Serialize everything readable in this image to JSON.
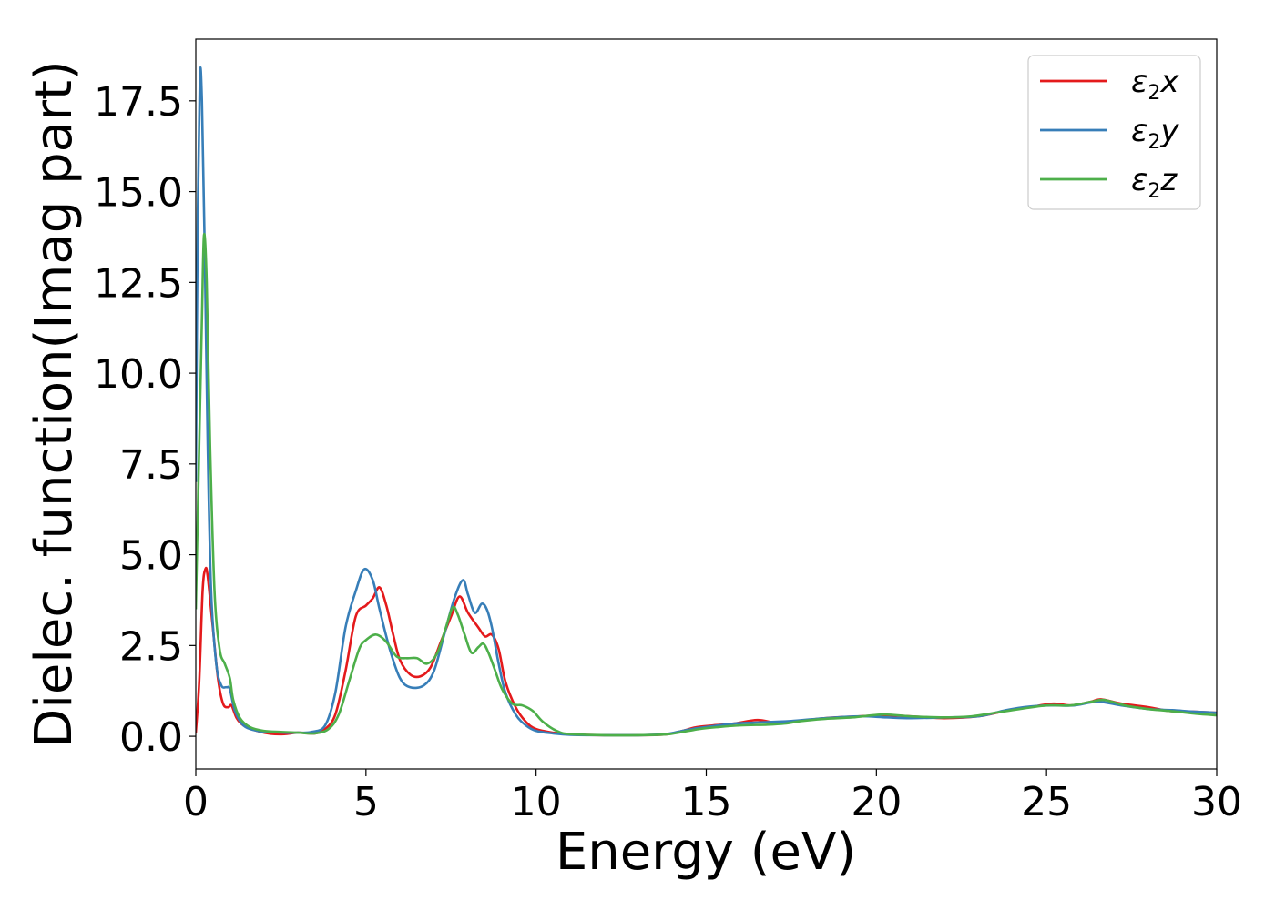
{
  "chart_data": {
    "type": "line",
    "xlabel": "Energy (eV)",
    "ylabel": "Dielec. function(Imag part)",
    "xlim": [
      0,
      30
    ],
    "ylim": [
      -0.9,
      19.2
    ],
    "xticks": [
      0,
      5,
      10,
      15,
      20,
      25,
      30
    ],
    "xtick_labels": [
      "0",
      "5",
      "10",
      "15",
      "20",
      "25",
      "30"
    ],
    "yticks": [
      0.0,
      2.5,
      5.0,
      7.5,
      10.0,
      12.5,
      15.0,
      17.5
    ],
    "ytick_labels": [
      "0.0",
      "2.5",
      "5.0",
      "7.5",
      "10.0",
      "12.5",
      "15.0",
      "17.5"
    ],
    "grid": false,
    "legend_position": "top-right",
    "series": [
      {
        "name": "ε2x",
        "legend_base": "ε",
        "legend_sub": "2",
        "legend_var": "x",
        "color": "#e41a1c",
        "points": [
          [
            0,
            0.1
          ],
          [
            0.1,
            1.5
          ],
          [
            0.2,
            4.0
          ],
          [
            0.28,
            4.6
          ],
          [
            0.35,
            4.4
          ],
          [
            0.5,
            3.0
          ],
          [
            0.65,
            1.6
          ],
          [
            0.8,
            0.9
          ],
          [
            0.95,
            0.8
          ],
          [
            1.05,
            0.85
          ],
          [
            1.2,
            0.5
          ],
          [
            1.4,
            0.3
          ],
          [
            1.8,
            0.15
          ],
          [
            2.2,
            0.07
          ],
          [
            2.6,
            0.06
          ],
          [
            3.0,
            0.1
          ],
          [
            3.5,
            0.08
          ],
          [
            3.8,
            0.2
          ],
          [
            4.1,
            0.6
          ],
          [
            4.4,
            1.8
          ],
          [
            4.7,
            3.3
          ],
          [
            5.0,
            3.6
          ],
          [
            5.2,
            3.8
          ],
          [
            5.4,
            4.1
          ],
          [
            5.6,
            3.6
          ],
          [
            5.8,
            2.8
          ],
          [
            6.0,
            2.1
          ],
          [
            6.3,
            1.7
          ],
          [
            6.6,
            1.65
          ],
          [
            6.9,
            1.9
          ],
          [
            7.2,
            2.6
          ],
          [
            7.5,
            3.3
          ],
          [
            7.75,
            3.85
          ],
          [
            8.0,
            3.4
          ],
          [
            8.3,
            3.0
          ],
          [
            8.5,
            2.75
          ],
          [
            8.7,
            2.8
          ],
          [
            8.9,
            2.4
          ],
          [
            9.1,
            1.5
          ],
          [
            9.4,
            0.8
          ],
          [
            9.7,
            0.4
          ],
          [
            10.0,
            0.2
          ],
          [
            10.5,
            0.1
          ],
          [
            11.0,
            0.05
          ],
          [
            12.0,
            0.03
          ],
          [
            13.0,
            0.03
          ],
          [
            13.8,
            0.05
          ],
          [
            14.3,
            0.15
          ],
          [
            14.7,
            0.25
          ],
          [
            15.2,
            0.3
          ],
          [
            15.8,
            0.35
          ],
          [
            16.5,
            0.45
          ],
          [
            17.0,
            0.38
          ],
          [
            17.5,
            0.4
          ],
          [
            18.5,
            0.5
          ],
          [
            19.5,
            0.55
          ],
          [
            20.2,
            0.58
          ],
          [
            21.0,
            0.55
          ],
          [
            22.0,
            0.5
          ],
          [
            23.0,
            0.55
          ],
          [
            23.8,
            0.7
          ],
          [
            24.5,
            0.8
          ],
          [
            25.2,
            0.9
          ],
          [
            25.7,
            0.85
          ],
          [
            26.3,
            0.95
          ],
          [
            26.6,
            1.02
          ],
          [
            27.2,
            0.9
          ],
          [
            28.0,
            0.8
          ],
          [
            28.6,
            0.7
          ],
          [
            29.3,
            0.68
          ],
          [
            30,
            0.65
          ]
        ]
      },
      {
        "name": "ε2y",
        "legend_base": "ε",
        "legend_sub": "2",
        "legend_var": "y",
        "color": "#377eb8",
        "points": [
          [
            0,
            7.0
          ],
          [
            0.06,
            14.5
          ],
          [
            0.12,
            18.2
          ],
          [
            0.18,
            17.5
          ],
          [
            0.26,
            13.5
          ],
          [
            0.35,
            8.0
          ],
          [
            0.45,
            4.0
          ],
          [
            0.6,
            2.0
          ],
          [
            0.75,
            1.4
          ],
          [
            0.9,
            1.35
          ],
          [
            1.0,
            1.3
          ],
          [
            1.15,
            0.7
          ],
          [
            1.4,
            0.3
          ],
          [
            1.8,
            0.15
          ],
          [
            2.2,
            0.12
          ],
          [
            2.6,
            0.1
          ],
          [
            3.0,
            0.1
          ],
          [
            3.4,
            0.12
          ],
          [
            3.8,
            0.3
          ],
          [
            4.1,
            1.2
          ],
          [
            4.4,
            3.0
          ],
          [
            4.7,
            4.0
          ],
          [
            4.95,
            4.6
          ],
          [
            5.2,
            4.3
          ],
          [
            5.4,
            3.5
          ],
          [
            5.7,
            2.4
          ],
          [
            6.0,
            1.6
          ],
          [
            6.3,
            1.35
          ],
          [
            6.7,
            1.4
          ],
          [
            7.0,
            1.8
          ],
          [
            7.3,
            2.8
          ],
          [
            7.6,
            3.8
          ],
          [
            7.85,
            4.3
          ],
          [
            8.0,
            3.9
          ],
          [
            8.2,
            3.4
          ],
          [
            8.4,
            3.65
          ],
          [
            8.55,
            3.5
          ],
          [
            8.7,
            3.0
          ],
          [
            8.9,
            2.0
          ],
          [
            9.1,
            1.2
          ],
          [
            9.4,
            0.6
          ],
          [
            9.7,
            0.3
          ],
          [
            10.0,
            0.15
          ],
          [
            10.5,
            0.08
          ],
          [
            11.0,
            0.04
          ],
          [
            12.0,
            0.03
          ],
          [
            13.0,
            0.03
          ],
          [
            13.8,
            0.06
          ],
          [
            14.3,
            0.15
          ],
          [
            14.7,
            0.22
          ],
          [
            15.2,
            0.28
          ],
          [
            15.8,
            0.35
          ],
          [
            16.5,
            0.38
          ],
          [
            17.0,
            0.4
          ],
          [
            17.5,
            0.42
          ],
          [
            18.5,
            0.5
          ],
          [
            19.5,
            0.55
          ],
          [
            20.3,
            0.52
          ],
          [
            21.0,
            0.5
          ],
          [
            22.0,
            0.52
          ],
          [
            23.0,
            0.55
          ],
          [
            23.8,
            0.72
          ],
          [
            24.5,
            0.82
          ],
          [
            25.2,
            0.85
          ],
          [
            25.8,
            0.85
          ],
          [
            26.5,
            0.95
          ],
          [
            27.2,
            0.85
          ],
          [
            28.0,
            0.75
          ],
          [
            28.7,
            0.72
          ],
          [
            29.3,
            0.68
          ],
          [
            30,
            0.65
          ]
        ]
      },
      {
        "name": "ε2z",
        "legend_base": "ε",
        "legend_sub": "2",
        "legend_var": "z",
        "color": "#4daf4a",
        "points": [
          [
            0,
            3.5
          ],
          [
            0.1,
            8.0
          ],
          [
            0.18,
            11.5
          ],
          [
            0.24,
            13.8
          ],
          [
            0.32,
            12.5
          ],
          [
            0.42,
            8.0
          ],
          [
            0.55,
            4.0
          ],
          [
            0.7,
            2.4
          ],
          [
            0.85,
            2.0
          ],
          [
            1.0,
            1.6
          ],
          [
            1.1,
            1.0
          ],
          [
            1.3,
            0.5
          ],
          [
            1.6,
            0.25
          ],
          [
            2.0,
            0.15
          ],
          [
            2.5,
            0.12
          ],
          [
            3.0,
            0.1
          ],
          [
            3.5,
            0.08
          ],
          [
            3.9,
            0.2
          ],
          [
            4.2,
            0.6
          ],
          [
            4.5,
            1.5
          ],
          [
            4.8,
            2.4
          ],
          [
            5.0,
            2.65
          ],
          [
            5.3,
            2.8
          ],
          [
            5.6,
            2.6
          ],
          [
            5.9,
            2.2
          ],
          [
            6.2,
            2.15
          ],
          [
            6.5,
            2.15
          ],
          [
            6.8,
            2.0
          ],
          [
            7.1,
            2.3
          ],
          [
            7.35,
            3.0
          ],
          [
            7.55,
            3.55
          ],
          [
            7.7,
            3.35
          ],
          [
            7.9,
            2.8
          ],
          [
            8.1,
            2.3
          ],
          [
            8.3,
            2.45
          ],
          [
            8.45,
            2.55
          ],
          [
            8.6,
            2.3
          ],
          [
            8.8,
            1.8
          ],
          [
            9.0,
            1.3
          ],
          [
            9.3,
            0.9
          ],
          [
            9.6,
            0.85
          ],
          [
            9.9,
            0.7
          ],
          [
            10.2,
            0.4
          ],
          [
            10.6,
            0.15
          ],
          [
            11.0,
            0.06
          ],
          [
            12.0,
            0.03
          ],
          [
            13.0,
            0.03
          ],
          [
            13.8,
            0.05
          ],
          [
            14.3,
            0.12
          ],
          [
            14.8,
            0.2
          ],
          [
            15.3,
            0.25
          ],
          [
            16.0,
            0.3
          ],
          [
            16.8,
            0.32
          ],
          [
            17.3,
            0.35
          ],
          [
            17.8,
            0.42
          ],
          [
            18.5,
            0.48
          ],
          [
            19.3,
            0.52
          ],
          [
            20.2,
            0.6
          ],
          [
            21.0,
            0.55
          ],
          [
            22.0,
            0.52
          ],
          [
            22.8,
            0.55
          ],
          [
            23.5,
            0.65
          ],
          [
            24.2,
            0.75
          ],
          [
            25.0,
            0.85
          ],
          [
            25.7,
            0.85
          ],
          [
            26.3,
            0.95
          ],
          [
            26.7,
            1.0
          ],
          [
            27.3,
            0.85
          ],
          [
            28.0,
            0.75
          ],
          [
            28.8,
            0.68
          ],
          [
            29.4,
            0.62
          ],
          [
            30,
            0.58
          ]
        ]
      }
    ]
  }
}
